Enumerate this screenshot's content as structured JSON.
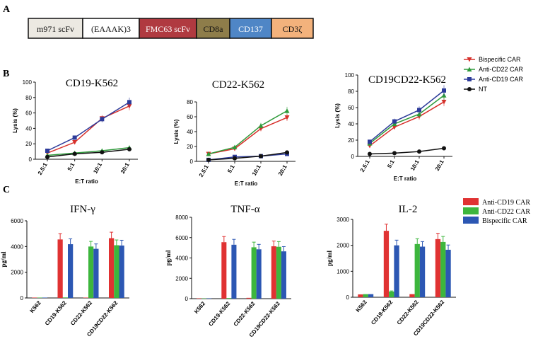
{
  "panel_labels": {
    "a": "A",
    "b": "B",
    "c": "C"
  },
  "construct": {
    "segments": [
      {
        "label": "m971 scFv",
        "color": "#ece9e2"
      },
      {
        "label": "(EAAAK)3",
        "color": "#ffffff"
      },
      {
        "label": "FMC63 scFv",
        "color": "#b03a40"
      },
      {
        "label": "CD8a",
        "color": "#8e7d4a"
      },
      {
        "label": "CD137",
        "color": "#4f86c6"
      },
      {
        "label": "CD3ζ",
        "color": "#f3b27c"
      }
    ]
  },
  "colors": {
    "bispecific": "#d7302b",
    "anti_cd22": "#2e9a3a",
    "anti_cd19": "#2d3b9a",
    "nt": "#111111",
    "bar_cd19": "#e03232",
    "bar_cd22": "#3db63d",
    "bar_bis": "#2c57b3"
  },
  "chart_data": [
    {
      "type": "line",
      "title": "CD19-K562",
      "xlabel": "E:T ratio",
      "ylabel": "Lysis (%)",
      "ylim": [
        0,
        100
      ],
      "yticks": [
        "0",
        "20",
        "40",
        "60",
        "80",
        "100"
      ],
      "categories": [
        "2.5:1",
        "5:1",
        "10:1",
        "20:1"
      ],
      "series": [
        {
          "name": "Bispecific CAR",
          "values": [
            8,
            22,
            53,
            69
          ]
        },
        {
          "name": "Anti-CD22 CAR",
          "values": [
            5,
            8,
            11,
            15
          ]
        },
        {
          "name": "Anti-CD19 CAR",
          "values": [
            11,
            28,
            52,
            74
          ]
        },
        {
          "name": "NT",
          "values": [
            3,
            7,
            9,
            13
          ]
        }
      ]
    },
    {
      "type": "line",
      "title": "CD22-K562",
      "xlabel": "E:T ratio",
      "ylabel": "Lysis (%)",
      "ylim": [
        0,
        80
      ],
      "yticks": [
        "0",
        "20",
        "40",
        "60",
        "80"
      ],
      "categories": [
        "2.5:1",
        "5:1",
        "10:1",
        "20:1"
      ],
      "series": [
        {
          "name": "Bispecific CAR",
          "values": [
            10,
            17,
            44,
            59
          ]
        },
        {
          "name": "Anti-CD22 CAR",
          "values": [
            10,
            19,
            48,
            68
          ]
        },
        {
          "name": "Anti-CD19 CAR",
          "values": [
            2,
            6,
            7,
            10
          ]
        },
        {
          "name": "NT",
          "values": [
            2,
            4,
            7,
            12
          ]
        }
      ]
    },
    {
      "type": "line",
      "title": "CD19CD22-K562",
      "xlabel": "E:T ratio",
      "ylabel": "Lysis (%)",
      "ylim": [
        0,
        100
      ],
      "yticks": [
        "0",
        "20",
        "40",
        "60",
        "80",
        "100"
      ],
      "categories": [
        "2.5:1",
        "5:1",
        "10:1",
        "20:1"
      ],
      "series": [
        {
          "name": "Bispecific CAR",
          "values": [
            13,
            36,
            49,
            67
          ]
        },
        {
          "name": "Anti-CD22 CAR",
          "values": [
            16,
            40,
            52,
            75
          ]
        },
        {
          "name": "Anti-CD19 CAR",
          "values": [
            18,
            43,
            57,
            81
          ]
        },
        {
          "name": "NT",
          "values": [
            3,
            4,
            6,
            10
          ]
        }
      ]
    },
    {
      "type": "bar",
      "title": "IFN-γ",
      "ylabel": "pg/ml",
      "ylim": [
        0,
        6000
      ],
      "yticks": [
        "0",
        "2000",
        "4000",
        "6000"
      ],
      "categories": [
        "K562",
        "CD19-K562",
        "CD22-K562",
        "CD19CD22-K562"
      ],
      "series": [
        {
          "name": "Anti-CD19 CAR",
          "values": [
            30,
            4550,
            30,
            4650
          ]
        },
        {
          "name": "Anti-CD22 CAR",
          "values": [
            30,
            40,
            4000,
            4100
          ]
        },
        {
          "name": "Bispecific CAR",
          "values": [
            30,
            4180,
            3820,
            4080
          ]
        }
      ]
    },
    {
      "type": "bar",
      "title": "TNF-α",
      "ylabel": "pg/ml",
      "ylim": [
        0,
        8000
      ],
      "yticks": [
        "0",
        "2000",
        "4000",
        "6000",
        "8000"
      ],
      "categories": [
        "K562",
        "CD19-K562",
        "CD22-K562",
        "CD19CD22-K562"
      ],
      "series": [
        {
          "name": "Anti-CD19 CAR",
          "values": [
            40,
            5550,
            80,
            5150
          ]
        },
        {
          "name": "Anti-CD22 CAR",
          "values": [
            30,
            60,
            5050,
            5100
          ]
        },
        {
          "name": "Bispecific CAR",
          "values": [
            40,
            5300,
            4850,
            4650
          ]
        }
      ]
    },
    {
      "type": "bar",
      "title": "IL-2",
      "ylabel": "pg/ml",
      "ylim": [
        0,
        3000
      ],
      "yticks": [
        "0",
        "1000",
        "2000",
        "3000"
      ],
      "categories": [
        "K562",
        "CD19-K562",
        "CD22-K562",
        "CD19CD22-K562"
      ],
      "series": [
        {
          "name": "Anti-CD19 CAR",
          "values": [
            110,
            2560,
            120,
            2240
          ]
        },
        {
          "name": "Anti-CD22 CAR",
          "values": [
            120,
            220,
            2050,
            2130
          ]
        },
        {
          "name": "Bispecific CAR",
          "values": [
            120,
            2000,
            1950,
            1830
          ]
        }
      ]
    }
  ],
  "legend_line": [
    "Bispecific CAR",
    "Anti-CD22 CAR",
    "Anti-CD19 CAR",
    "NT"
  ],
  "legend_bar": [
    "Anti-CD19 CAR",
    "Anti-CD22 CAR",
    "Bispecific CAR"
  ]
}
